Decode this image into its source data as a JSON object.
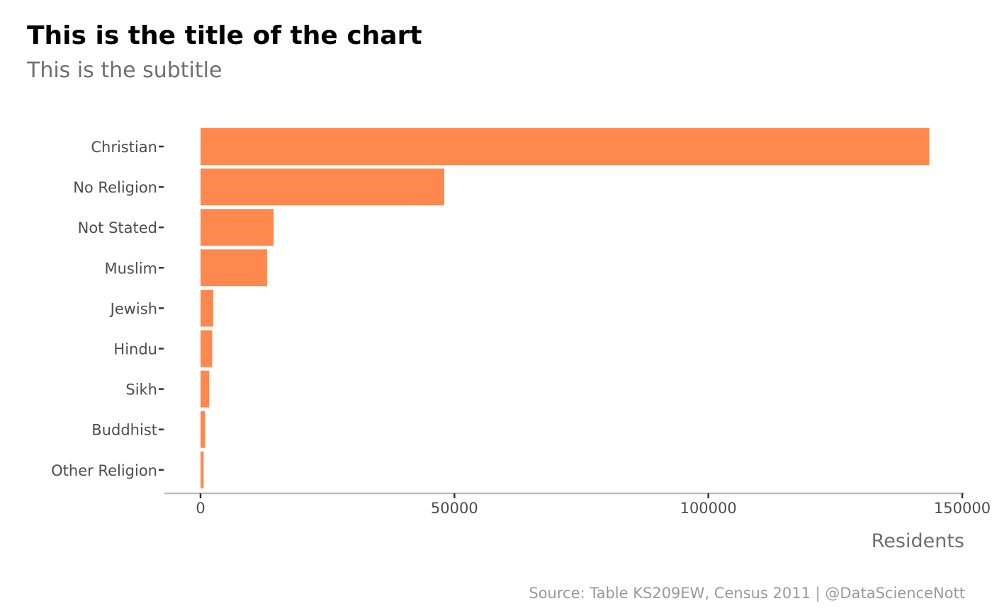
{
  "chart_data": {
    "type": "bar",
    "orientation": "horizontal",
    "title": "This is the title of the chart",
    "subtitle": "This is the subtitle",
    "xlabel": "Residents",
    "ylabel": "",
    "caption": "Source: Table KS209EW, Census 2011  |  @DataScienceNott",
    "categories": [
      "Christian",
      "No Religion",
      "Not Stated",
      "Muslim",
      "Jewish",
      "Hindu",
      "Sikh",
      "Buddhist",
      "Other Religion"
    ],
    "values": [
      143500,
      48000,
      14400,
      13100,
      2500,
      2300,
      1700,
      900,
      600
    ],
    "xlim": [
      -7000,
      150000
    ],
    "x_ticks": [
      0,
      50000,
      100000,
      150000
    ],
    "x_tick_labels": [
      "0",
      "50000",
      "100000",
      "150000"
    ],
    "grid": false,
    "bar_color": "#ff884f"
  }
}
